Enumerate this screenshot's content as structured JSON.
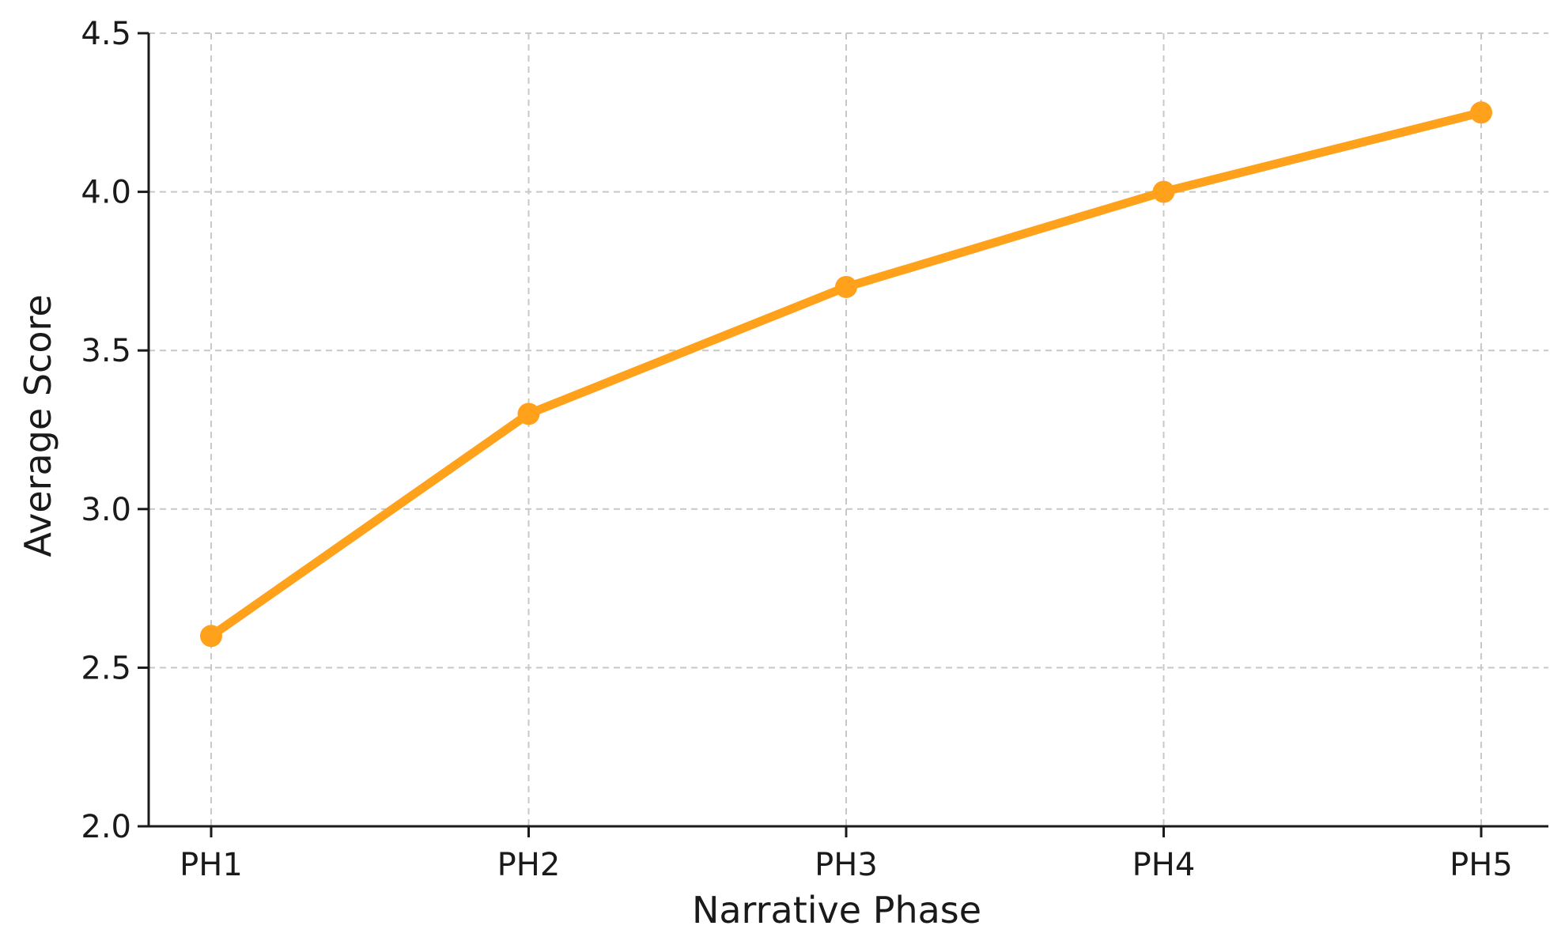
{
  "chart_data": {
    "type": "line",
    "title": "",
    "xlabel": "Narrative Phase",
    "ylabel": "Average Score",
    "categories": [
      "PH1",
      "PH2",
      "PH3",
      "PH4",
      "PH5"
    ],
    "series": [
      {
        "values": [
          2.6,
          3.3,
          3.7,
          4.0,
          4.25
        ],
        "color": "#FFA11A"
      }
    ],
    "ylim": [
      2.0,
      4.5
    ],
    "yticks": [
      "2.0",
      "2.5",
      "3.0",
      "3.5",
      "4.0",
      "4.5"
    ],
    "grid": true,
    "legend": "none"
  }
}
